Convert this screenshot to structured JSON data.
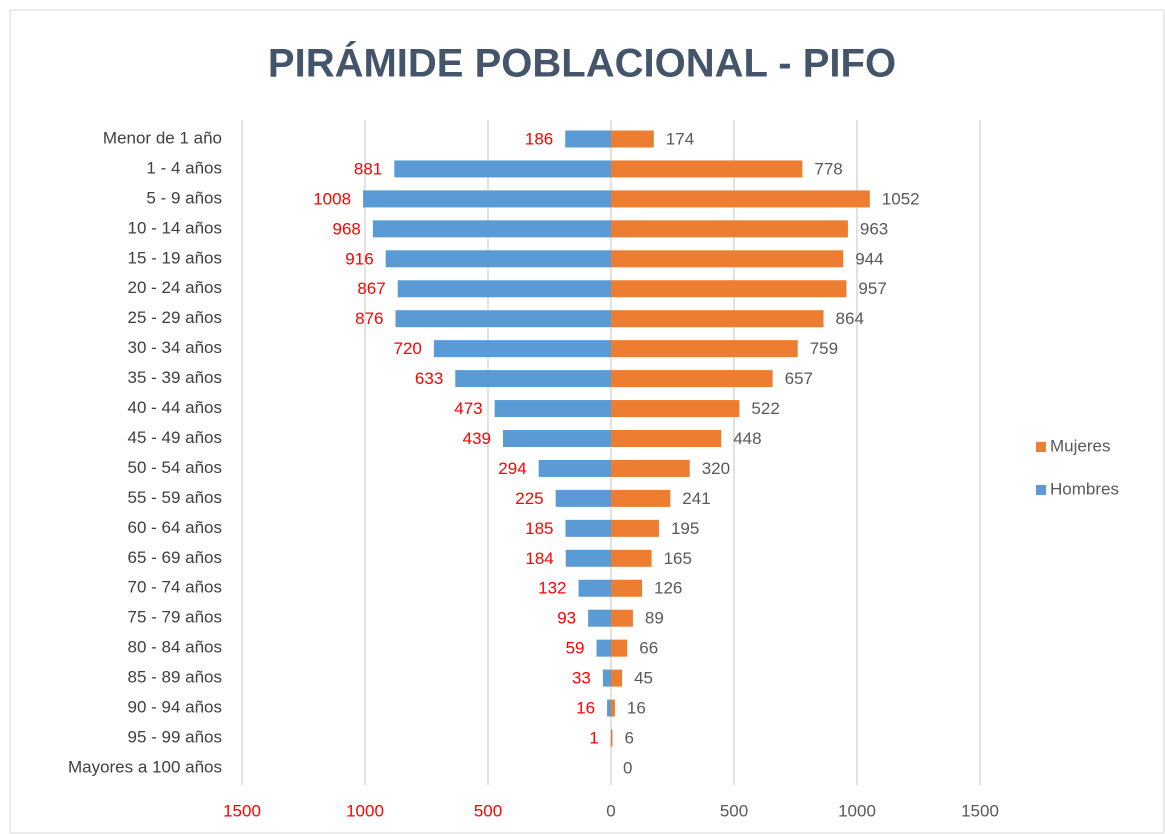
{
  "chart_data": {
    "type": "pyramid",
    "title": "PIRÁMIDE POBLACIONAL - PIFO",
    "categories": [
      "Menor de 1 año",
      "1 - 4 años",
      "5 - 9 años",
      "10 - 14 años",
      "15 - 19 años",
      "20 - 24 años",
      "25 - 29 años",
      "30 - 34 años",
      "35 - 39 años",
      "40 - 44 años",
      "45 - 49 años",
      "50 - 54 años",
      "55 - 59 años",
      "60 - 64 años",
      "65 - 69 años",
      "70 - 74 años",
      "75 - 79 años",
      "80 - 84 años",
      "85 - 89 años",
      "90 - 94 años",
      "95 - 99 años",
      "Mayores a 100 años"
    ],
    "series": [
      {
        "name": "Mujeres",
        "color": "#ed7d31",
        "values": [
          174,
          778,
          1052,
          963,
          944,
          957,
          864,
          759,
          657,
          522,
          448,
          320,
          241,
          195,
          165,
          126,
          89,
          66,
          45,
          16,
          6,
          0
        ]
      },
      {
        "name": "Hombres",
        "color": "#5b9bd5",
        "values": [
          186,
          881,
          1008,
          968,
          916,
          867,
          876,
          720,
          633,
          473,
          439,
          294,
          225,
          185,
          184,
          132,
          93,
          59,
          33,
          16,
          1,
          null
        ]
      }
    ],
    "xlim": [
      -1500,
      1500
    ],
    "xticks": [
      {
        "value": -1500,
        "label": "1500"
      },
      {
        "value": -1000,
        "label": "1000"
      },
      {
        "value": -500,
        "label": "500"
      },
      0,
      500,
      1000,
      1500
    ],
    "grid": true,
    "legend": "right"
  }
}
